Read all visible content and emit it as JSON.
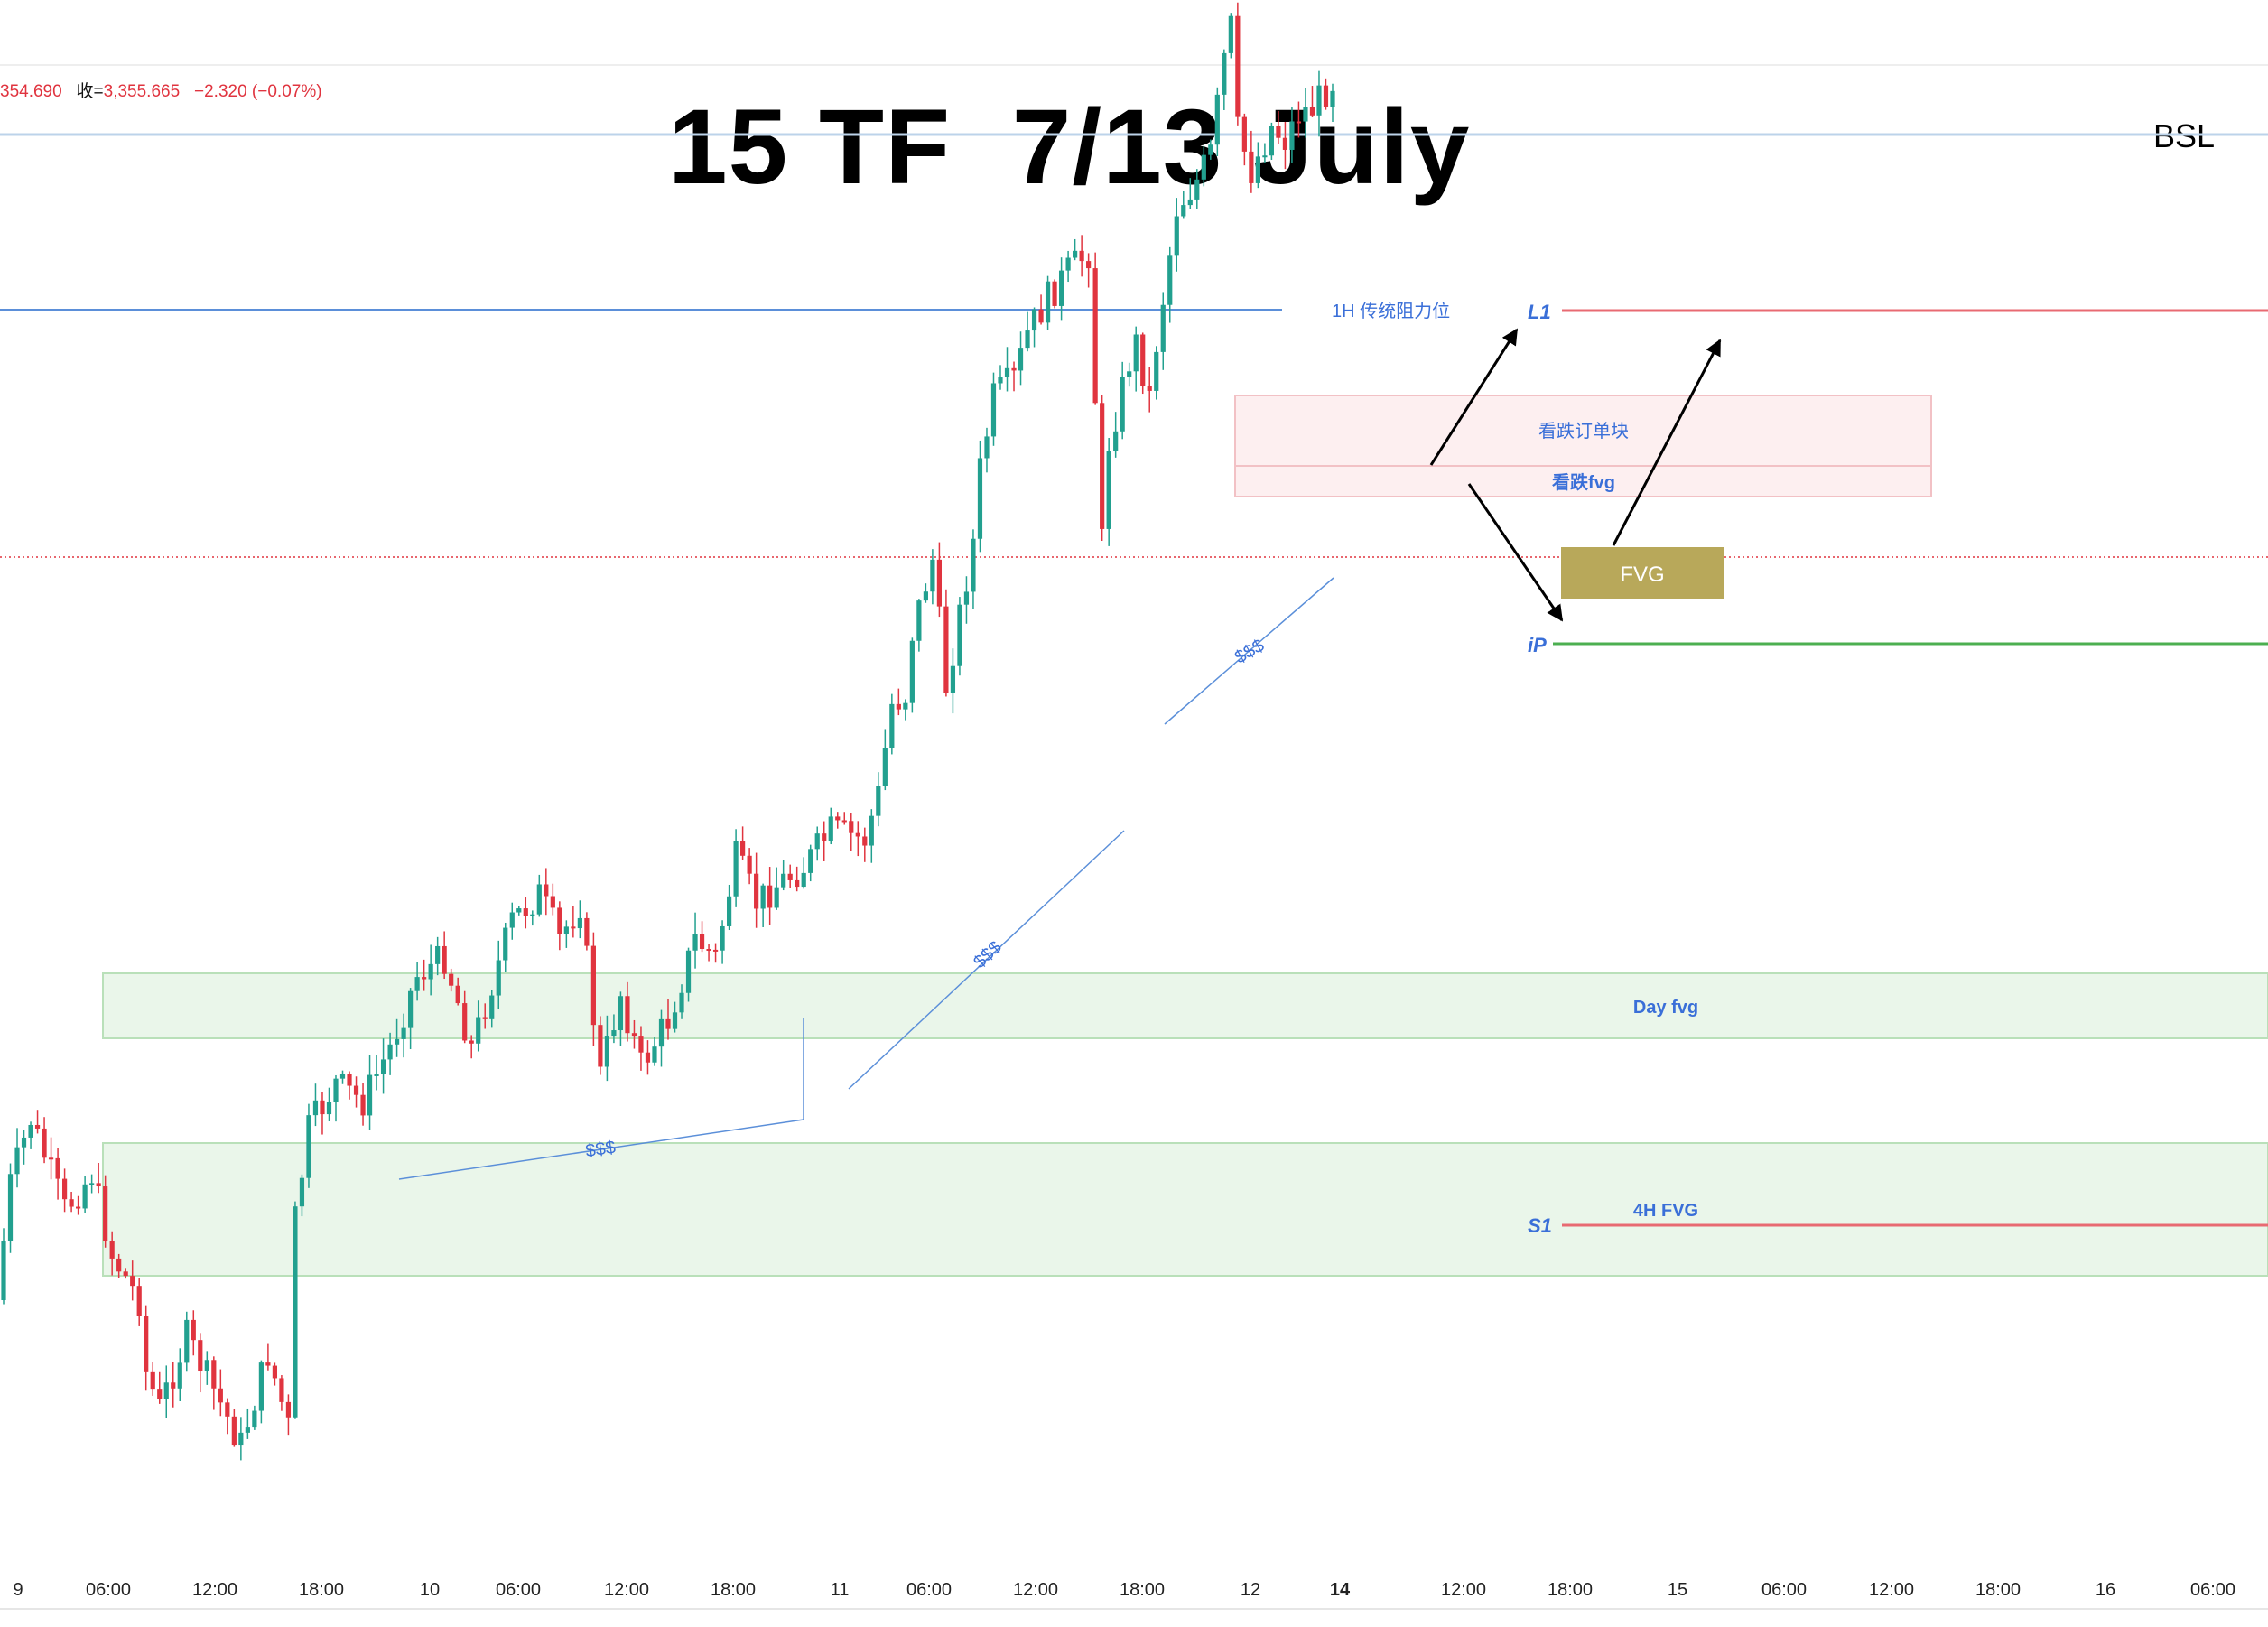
{
  "ohlc_line": {
    "open_partial": "354.690",
    "close_label": "收=",
    "close_value": "3,355.665",
    "change": "−2.320 (−0.07%)"
  },
  "title": "15 TF  7/13 July",
  "bsl_label": "BSL",
  "colors": {
    "up": "#22a08f",
    "down": "#e0343f",
    "blue_line": "#5b8fd9",
    "label_blue": "#3a6fd8",
    "red_level": "#e86a72",
    "green_level": "#4caf50",
    "fvg_fill": "#b8a85a"
  },
  "annotations": {
    "resistance_1h": "1H 传统阻力位",
    "L1": "L1",
    "iP": "iP",
    "S1": "S1",
    "bear_ob": "看跌订单块",
    "bear_fvg": "看跌fvg",
    "fvg": "FVG",
    "day_fvg": "Day fvg",
    "h4_fvg": "4H FVG",
    "liquidity": "$$$"
  },
  "chart_data": {
    "type": "candlestick",
    "title": "15 TF  7/13 July",
    "x_ticks": [
      "9",
      "06:00",
      "12:00",
      "18:00",
      "10",
      "06:00",
      "12:00",
      "18:00",
      "11",
      "06:00",
      "12:00",
      "18:00",
      "12",
      "14",
      "12:00",
      "18:00",
      "15",
      "06:00",
      "12:00",
      "18:00",
      "16",
      "06:00"
    ],
    "price_path_keypoints": [
      [
        0,
        1440
      ],
      [
        2,
        1310
      ],
      [
        5,
        1240
      ],
      [
        10,
        1340
      ],
      [
        14,
        1300
      ],
      [
        17,
        1390
      ],
      [
        21,
        1440
      ],
      [
        22,
        1520
      ],
      [
        24,
        1560
      ],
      [
        28,
        1480
      ],
      [
        32,
        1540
      ],
      [
        36,
        1600
      ],
      [
        40,
        1500
      ],
      [
        43,
        1580
      ],
      [
        44,
        1350
      ],
      [
        46,
        1250
      ],
      [
        50,
        1200
      ],
      [
        54,
        1220
      ],
      [
        58,
        1160
      ],
      [
        62,
        1080
      ],
      [
        66,
        1060
      ],
      [
        70,
        1160
      ],
      [
        76,
        1020
      ],
      [
        80,
        990
      ],
      [
        83,
        1040
      ],
      [
        86,
        1000
      ],
      [
        89,
        1190
      ],
      [
        92,
        1100
      ],
      [
        95,
        1180
      ],
      [
        99,
        1130
      ],
      [
        103,
        1040
      ],
      [
        106,
        1060
      ],
      [
        109,
        950
      ],
      [
        112,
        1000
      ],
      [
        115,
        980
      ],
      [
        119,
        960
      ],
      [
        123,
        920
      ],
      [
        128,
        930
      ],
      [
        130,
        880
      ],
      [
        132,
        780
      ],
      [
        134,
        770
      ],
      [
        135,
        700
      ],
      [
        138,
        620
      ],
      [
        140,
        760
      ],
      [
        143,
        640
      ],
      [
        144,
        600
      ],
      [
        145,
        520
      ],
      [
        147,
        440
      ],
      [
        150,
        420
      ],
      [
        152,
        370
      ],
      [
        155,
        330
      ],
      [
        158,
        300
      ],
      [
        161,
        280
      ],
      [
        163,
        600
      ],
      [
        164,
        490
      ],
      [
        166,
        430
      ],
      [
        167,
        400
      ],
      [
        168,
        380
      ],
      [
        170,
        440
      ],
      [
        171,
        380
      ],
      [
        174,
        230
      ],
      [
        177,
        200
      ],
      [
        179,
        170
      ],
      [
        181,
        65
      ],
      [
        182,
        30
      ],
      [
        183,
        145
      ],
      [
        185,
        190
      ],
      [
        188,
        140
      ],
      [
        190,
        155
      ],
      [
        192,
        125
      ],
      [
        194,
        120
      ],
      [
        196,
        100
      ],
      [
        197,
        90
      ]
    ],
    "candle_count": 197
  }
}
